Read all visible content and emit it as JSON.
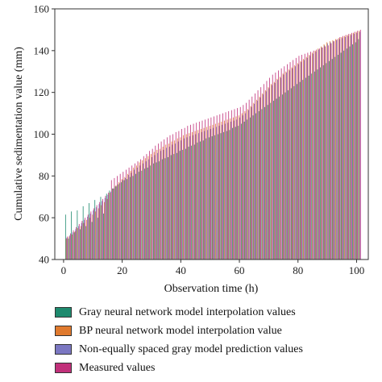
{
  "chart_data": {
    "type": "bar",
    "title": "",
    "xlabel": "Observation time (h)",
    "ylabel": "Cumulative sedimentation value (mm)",
    "xlim": [
      -3,
      104
    ],
    "ylim": [
      40,
      160
    ],
    "xticks": [
      0,
      20,
      40,
      60,
      80,
      100
    ],
    "yticks": [
      40,
      60,
      80,
      100,
      120,
      140,
      160
    ],
    "xtick_labels": [
      "0",
      "20",
      "40",
      "60",
      "80",
      "100"
    ],
    "ytick_labels": [
      "40",
      "60",
      "80",
      "100",
      "120",
      "140",
      "160"
    ],
    "grid": false,
    "legend_position": "below",
    "x": [
      1,
      2,
      3,
      4,
      5,
      6,
      7,
      8,
      9,
      10,
      11,
      12,
      13,
      14,
      15,
      16,
      17,
      18,
      19,
      20,
      21,
      22,
      23,
      24,
      25,
      26,
      27,
      28,
      29,
      30,
      31,
      32,
      33,
      34,
      35,
      36,
      37,
      38,
      39,
      40,
      41,
      42,
      43,
      44,
      45,
      46,
      47,
      48,
      49,
      50,
      51,
      52,
      53,
      54,
      55,
      56,
      57,
      58,
      59,
      60,
      61,
      62,
      63,
      64,
      65,
      66,
      67,
      68,
      69,
      70,
      71,
      72,
      73,
      74,
      75,
      76,
      77,
      78,
      79,
      80,
      81,
      82,
      83,
      84,
      85,
      86,
      87,
      88,
      89,
      90,
      91,
      92,
      93,
      94,
      95,
      96,
      97,
      98,
      99,
      100,
      101
    ],
    "series": [
      {
        "name": "Gray neural network model interpolation values",
        "color": "#1e8a6e",
        "values": [
          61.5,
          50.0,
          63.0,
          53.0,
          63.5,
          54.5,
          65.5,
          56.0,
          67.0,
          58.0,
          68.5,
          60.0,
          70.0,
          62.0,
          71.5,
          73.0,
          74.0,
          75.0,
          76.0,
          77.0,
          78.0,
          78.5,
          79.5,
          80.0,
          81.0,
          82.0,
          82.5,
          83.5,
          84.0,
          85.0,
          86.0,
          86.5,
          87.0,
          88.0,
          88.5,
          89.0,
          90.0,
          90.5,
          91.0,
          92.0,
          92.5,
          93.0,
          94.0,
          94.5,
          95.0,
          96.0,
          96.5,
          97.0,
          98.0,
          98.5,
          99.0,
          99.5,
          100.0,
          100.5,
          101.0,
          101.5,
          102.0,
          103.0,
          103.5,
          104.0,
          105.0,
          106.0,
          107.0,
          108.0,
          109.0,
          110.0,
          111.0,
          112.0,
          113.0,
          114.0,
          115.0,
          116.0,
          117.0,
          118.0,
          119.0,
          120.0,
          121.0,
          122.0,
          123.0,
          124.0,
          125.0,
          126.0,
          127.0,
          128.0,
          129.0,
          130.0,
          131.0,
          132.0,
          133.0,
          134.0,
          135.0,
          136.0,
          137.0,
          138.0,
          139.0,
          140.0,
          141.0,
          142.0,
          143.0,
          144.0,
          145.5
        ]
      },
      {
        "name": "BP neural network model interpolation value",
        "color": "#e07a2e",
        "values": [
          50.0,
          51.0,
          52.0,
          53.5,
          55.0,
          56.0,
          57.5,
          59.0,
          60.0,
          61.5,
          63.0,
          64.5,
          66.0,
          67.5,
          69.0,
          72.0,
          74.0,
          75.5,
          77.0,
          78.5,
          79.5,
          81.0,
          82.5,
          84.0,
          85.0,
          86.5,
          87.5,
          88.5,
          89.5,
          90.5,
          91.5,
          92.5,
          93.0,
          94.0,
          95.0,
          95.5,
          96.5,
          97.0,
          98.0,
          98.5,
          99.5,
          100.0,
          100.5,
          101.0,
          101.5,
          102.0,
          102.5,
          103.0,
          103.5,
          104.0,
          104.5,
          105.0,
          105.5,
          106.0,
          106.5,
          107.0,
          107.5,
          108.0,
          108.5,
          109.0,
          110.0,
          111.0,
          112.0,
          113.5,
          115.0,
          116.5,
          118.0,
          119.5,
          121.0,
          122.5,
          124.0,
          125.0,
          126.5,
          127.5,
          129.0,
          130.0,
          131.0,
          132.0,
          133.0,
          134.0,
          135.0,
          136.0,
          137.0,
          138.0,
          139.0,
          140.0,
          141.0,
          142.0,
          143.0,
          144.0,
          144.5,
          145.0,
          145.5,
          146.0,
          146.5,
          147.0,
          147.5,
          148.0,
          148.5,
          149.0,
          149.5
        ]
      },
      {
        "name": "Non-equally spaced gray model prediction values",
        "color": "#7b77c2",
        "values": [
          50.5,
          51.5,
          53.0,
          54.5,
          56.0,
          57.5,
          59.0,
          60.5,
          62.0,
          63.5,
          65.0,
          66.5,
          68.0,
          69.5,
          71.0,
          72.5,
          74.0,
          75.0,
          76.5,
          78.0,
          79.0,
          80.5,
          81.5,
          83.0,
          84.0,
          85.0,
          86.0,
          87.0,
          88.0,
          89.0,
          90.0,
          91.0,
          92.0,
          92.5,
          93.5,
          94.0,
          95.0,
          95.5,
          96.5,
          97.0,
          98.0,
          98.5,
          99.0,
          99.5,
          100.0,
          100.5,
          101.0,
          101.5,
          102.0,
          102.5,
          103.0,
          103.5,
          104.0,
          104.5,
          105.0,
          105.5,
          106.0,
          106.5,
          107.0,
          108.0,
          109.0,
          110.0,
          111.5,
          113.0,
          114.5,
          116.0,
          117.5,
          119.0,
          120.5,
          122.0,
          123.5,
          124.5,
          126.0,
          127.0,
          128.5,
          129.5,
          130.5,
          131.5,
          132.5,
          133.5,
          134.5,
          135.5,
          136.5,
          137.5,
          138.5,
          139.5,
          140.5,
          141.5,
          142.5,
          143.5,
          144.0,
          144.5,
          145.0,
          145.5,
          146.0,
          146.5,
          147.0,
          147.5,
          148.0,
          148.5,
          149.0
        ]
      },
      {
        "name": "Measured values",
        "color": "#c1307a",
        "values": [
          51.0,
          52.5,
          54.0,
          55.5,
          57.0,
          58.5,
          60.0,
          61.5,
          63.0,
          64.5,
          66.0,
          67.5,
          69.0,
          70.5,
          72.0,
          78.0,
          79.0,
          80.0,
          81.0,
          82.0,
          83.0,
          84.0,
          85.0,
          86.0,
          87.0,
          88.0,
          89.5,
          90.5,
          92.0,
          93.0,
          94.5,
          95.5,
          96.5,
          97.5,
          98.5,
          99.5,
          100.0,
          101.0,
          101.5,
          102.5,
          103.0,
          104.0,
          104.5,
          105.0,
          105.5,
          106.0,
          106.5,
          107.0,
          107.5,
          108.0,
          108.5,
          109.0,
          109.5,
          110.0,
          110.5,
          111.0,
          111.5,
          112.0,
          112.5,
          113.0,
          114.0,
          115.0,
          116.5,
          118.0,
          119.5,
          121.0,
          122.5,
          124.0,
          125.5,
          127.0,
          128.5,
          129.5,
          130.5,
          131.5,
          132.5,
          133.5,
          134.5,
          135.5,
          136.5,
          137.5,
          138.0,
          138.5,
          139.0,
          139.5,
          140.0,
          140.5,
          141.0,
          141.5,
          142.0,
          142.5,
          143.5,
          144.5,
          145.5,
          146.5,
          147.0,
          147.5,
          148.0,
          148.5,
          149.0,
          149.5,
          150.0
        ]
      }
    ]
  }
}
